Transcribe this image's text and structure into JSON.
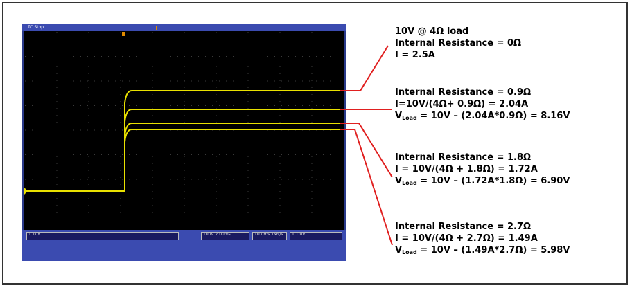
{
  "scope": {
    "top_label": "TC Stop",
    "ch1_readout": "1 10V",
    "box_time": "100V 2.00ms",
    "box_trigger": "10.0ms 1Ms/s",
    "box_ch": "1 1.0V"
  },
  "annotations": {
    "group1": {
      "line1": "10V @ 4Ω load",
      "line2": "Internal Resistance = 0Ω",
      "line3": "I = 2.5A"
    },
    "group2": {
      "line1": "Internal Resistance = 0.9Ω",
      "line2": "I=10V/(4Ω+ 0.9Ω) = 2.04A",
      "v_prefix": "V",
      "v_sub": "Load",
      "v_rest": " = 10V – (2.04A*0.9Ω) = 8.16V"
    },
    "group3": {
      "line1": "Internal Resistance = 1.8Ω",
      "line2": "I = 10V/(4Ω + 1.8Ω) = 1.72A",
      "v_prefix": "V",
      "v_sub": "Load",
      "v_rest": " = 10V – (1.72A*1.8Ω) = 6.90V"
    },
    "group4": {
      "line1": "Internal Resistance = 2.7Ω",
      "line2": "I = 10V/(4Ω + 2.7Ω) = 1.49A",
      "v_prefix": "V",
      "v_sub": "Load",
      "v_rest": " = 10V – (1.49A*2.7Ω) = 5.98V"
    }
  },
  "colors": {
    "trace": "#e8e000",
    "leader": "#e02020",
    "screen": "#000000",
    "bezel": "#3b4bb0"
  }
}
